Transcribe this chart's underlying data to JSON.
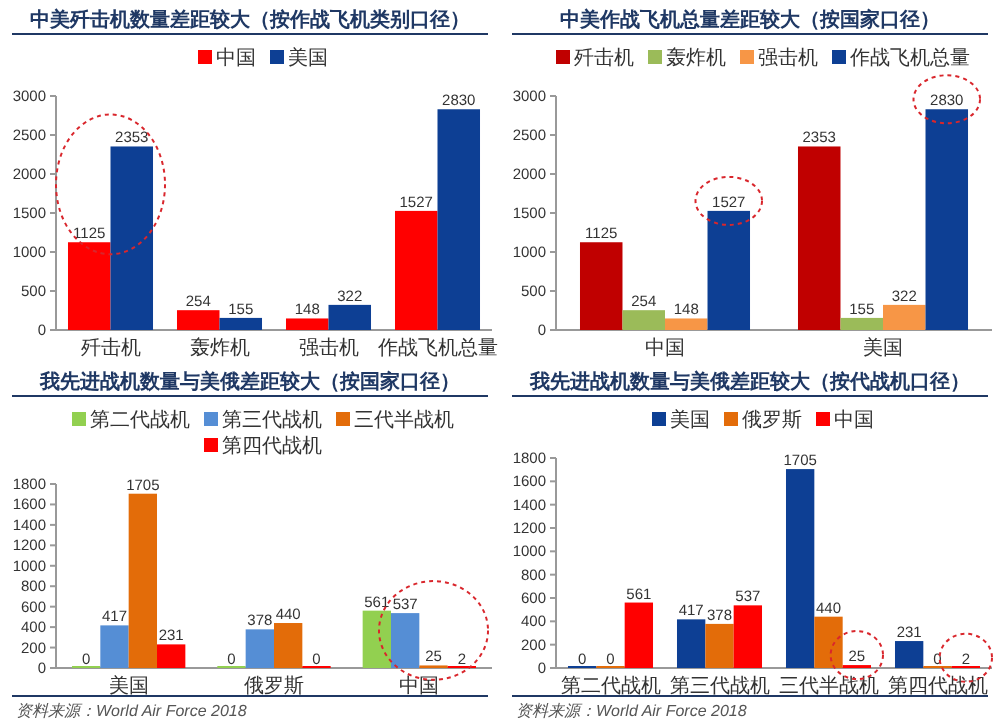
{
  "chart_data": [
    {
      "type": "bar",
      "title": "中美歼击机数量差距较大（按作战飞机类别口径）",
      "categories": [
        "歼击机",
        "轰炸机",
        "强击机",
        "作战飞机总量"
      ],
      "series": [
        {
          "name": "中国",
          "color": "#ff0000",
          "values": [
            1125,
            254,
            148,
            1527
          ]
        },
        {
          "name": "美国",
          "color": "#0d3f94",
          "values": [
            2353,
            155,
            322,
            2830
          ]
        }
      ],
      "ylim": [
        0,
        3000
      ],
      "yticks": [
        0,
        500,
        1000,
        1500,
        2000,
        2500,
        3000
      ],
      "data_labels": true,
      "legend": "top"
    },
    {
      "type": "bar",
      "title": "中美作战飞机总量差距较大（按国家口径）",
      "categories": [
        "中国",
        "美国"
      ],
      "series": [
        {
          "name": "歼击机",
          "color": "#c00000",
          "values": [
            1125,
            2353
          ]
        },
        {
          "name": "轰炸机",
          "color": "#9bbb59",
          "values": [
            254,
            155
          ]
        },
        {
          "name": "强击机",
          "color": "#f79646",
          "values": [
            148,
            322
          ]
        },
        {
          "name": "作战飞机总量",
          "color": "#0d3f94",
          "values": [
            1527,
            2830
          ]
        }
      ],
      "ylim": [
        0,
        3000
      ],
      "yticks": [
        0,
        500,
        1000,
        1500,
        2000,
        2500,
        3000
      ],
      "data_labels": true,
      "legend": "top"
    },
    {
      "type": "bar",
      "title": "我先进战机数量与美俄差距较大（按国家口径）",
      "categories": [
        "美国",
        "俄罗斯",
        "中国"
      ],
      "series": [
        {
          "name": "第二代战机",
          "color": "#92d050",
          "values": [
            0,
            0,
            561
          ]
        },
        {
          "name": "第三代战机",
          "color": "#558ed5",
          "values": [
            417,
            378,
            537
          ]
        },
        {
          "name": "三代半战机",
          "color": "#e36c09",
          "values": [
            1705,
            440,
            25
          ]
        },
        {
          "name": "第四代战机",
          "color": "#ff0000",
          "values": [
            231,
            0,
            2
          ]
        }
      ],
      "ylim": [
        0,
        1800
      ],
      "yticks": [
        0,
        200,
        400,
        600,
        800,
        1000,
        1200,
        1400,
        1600,
        1800
      ],
      "data_labels": true,
      "legend": "top",
      "annotations": [
        "资料来源：World Air Force 2018"
      ]
    },
    {
      "type": "bar",
      "title": "我先进战机数量与美俄差距较大（按代战机口径）",
      "categories": [
        "第二代战机",
        "第三代战机",
        "三代半战机",
        "第四代战机"
      ],
      "series": [
        {
          "name": "美国",
          "color": "#0d3f94",
          "values": [
            0,
            417,
            1705,
            231
          ]
        },
        {
          "name": "俄罗斯",
          "color": "#e36c09",
          "values": [
            0,
            378,
            440,
            0
          ]
        },
        {
          "name": "中国",
          "color": "#ff0000",
          "values": [
            561,
            537,
            25,
            2
          ]
        }
      ],
      "ylim": [
        0,
        1800
      ],
      "yticks": [
        0,
        200,
        400,
        600,
        800,
        1000,
        1200,
        1400,
        1600,
        1800
      ],
      "data_labels": true,
      "legend": "top",
      "annotations": [
        "资料来源：World Air Force 2018"
      ]
    }
  ]
}
